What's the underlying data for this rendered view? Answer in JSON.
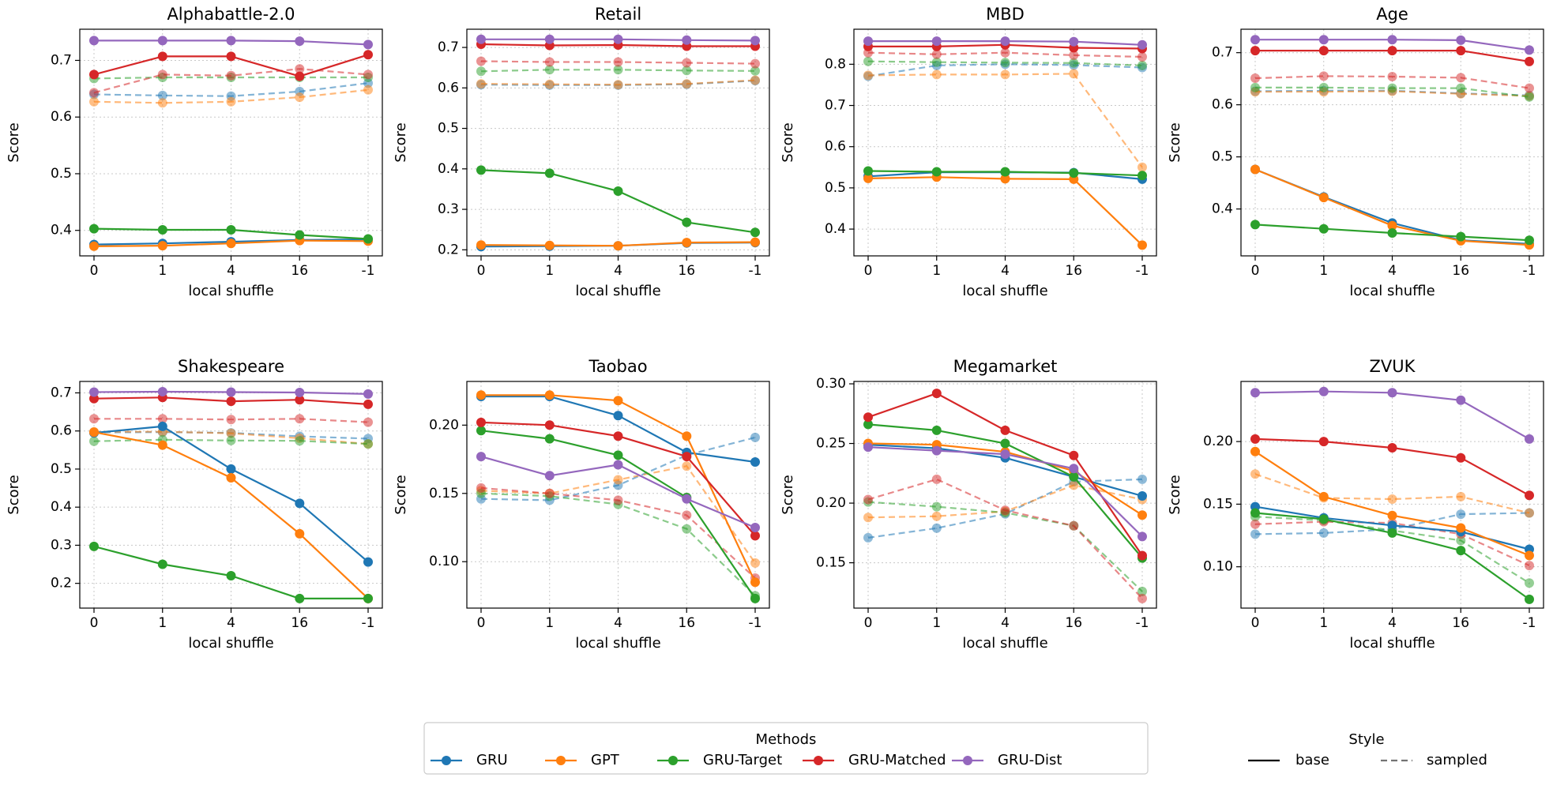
{
  "colors": {
    "GRU": "#1f77b4",
    "GPT": "#ff7f0e",
    "GRU-Target": "#2ca02c",
    "GRU-Matched": "#d62728",
    "GRU-Dist": "#9467bd"
  },
  "legend": {
    "methods_title": "Methods",
    "methods": [
      "GRU",
      "GPT",
      "GRU-Target",
      "GRU-Matched",
      "GRU-Dist"
    ],
    "style_title": "Style",
    "styles": [
      "base",
      "sampled"
    ]
  },
  "chart_data": [
    {
      "type": "line",
      "title": "Alphabattle-2.0",
      "xlabel": "local shuffle",
      "ylabel": "Score",
      "categories": [
        "0",
        "1",
        "4",
        "16",
        "-1"
      ],
      "ylim": [
        0.355,
        0.755
      ],
      "yticks": [
        0.4,
        0.5,
        0.6,
        0.7
      ],
      "yticklabels": [
        "0.4",
        "0.5",
        "0.6",
        "0.7"
      ],
      "series": [
        {
          "name": "GRU",
          "style": "base",
          "values": [
            0.375,
            0.377,
            0.38,
            0.383,
            0.384
          ]
        },
        {
          "name": "GPT",
          "style": "base",
          "values": [
            0.372,
            0.373,
            0.377,
            0.382,
            0.381
          ]
        },
        {
          "name": "GRU-Target",
          "style": "base",
          "values": [
            0.403,
            0.401,
            0.401,
            0.392,
            0.385
          ]
        },
        {
          "name": "GRU-Matched",
          "style": "base",
          "values": [
            0.675,
            0.707,
            0.707,
            0.672,
            0.71
          ]
        },
        {
          "name": "GRU-Dist",
          "style": "base",
          "values": [
            0.735,
            0.735,
            0.735,
            0.734,
            0.728
          ]
        },
        {
          "name": "GRU",
          "style": "sampled",
          "values": [
            0.64,
            0.638,
            0.637,
            0.645,
            0.66
          ]
        },
        {
          "name": "GPT",
          "style": "sampled",
          "values": [
            0.627,
            0.625,
            0.627,
            0.635,
            0.648
          ]
        },
        {
          "name": "GRU-Target",
          "style": "sampled",
          "values": [
            0.668,
            0.67,
            0.67,
            0.67,
            0.67
          ]
        },
        {
          "name": "GRU-Matched",
          "style": "sampled",
          "values": [
            0.643,
            0.675,
            0.673,
            0.685,
            0.675
          ]
        }
      ]
    },
    {
      "type": "line",
      "title": "Retail",
      "xlabel": "local shuffle",
      "ylabel": "Score",
      "categories": [
        "0",
        "1",
        "4",
        "16",
        "-1"
      ],
      "ylim": [
        0.185,
        0.745
      ],
      "yticks": [
        0.2,
        0.3,
        0.4,
        0.5,
        0.6,
        0.7
      ],
      "yticklabels": [
        "0.2",
        "0.3",
        "0.4",
        "0.5",
        "0.6",
        "0.7"
      ],
      "series": [
        {
          "name": "GRU",
          "style": "base",
          "values": [
            0.208,
            0.209,
            0.21,
            0.217,
            0.218
          ]
        },
        {
          "name": "GPT",
          "style": "base",
          "values": [
            0.212,
            0.211,
            0.21,
            0.218,
            0.219
          ]
        },
        {
          "name": "GRU-Target",
          "style": "base",
          "values": [
            0.397,
            0.389,
            0.345,
            0.268,
            0.243
          ]
        },
        {
          "name": "GRU-Matched",
          "style": "base",
          "values": [
            0.708,
            0.705,
            0.706,
            0.703,
            0.703
          ]
        },
        {
          "name": "GRU-Dist",
          "style": "base",
          "values": [
            0.72,
            0.72,
            0.72,
            0.718,
            0.717
          ]
        },
        {
          "name": "GRU",
          "style": "sampled",
          "values": [
            0.608,
            0.607,
            0.607,
            0.609,
            0.618
          ]
        },
        {
          "name": "GPT",
          "style": "sampled",
          "values": [
            0.61,
            0.609,
            0.608,
            0.61,
            0.619
          ]
        },
        {
          "name": "GRU-Target",
          "style": "sampled",
          "values": [
            0.641,
            0.645,
            0.645,
            0.643,
            0.642
          ]
        },
        {
          "name": "GRU-Matched",
          "style": "sampled",
          "values": [
            0.666,
            0.664,
            0.664,
            0.662,
            0.66
          ]
        }
      ]
    },
    {
      "type": "line",
      "title": "MBD",
      "xlabel": "local shuffle",
      "ylabel": "Score",
      "categories": [
        "0",
        "1",
        "4",
        "16",
        "-1"
      ],
      "ylim": [
        0.335,
        0.885
      ],
      "yticks": [
        0.4,
        0.5,
        0.6,
        0.7,
        0.8
      ],
      "yticklabels": [
        "0.4",
        "0.5",
        "0.6",
        "0.7",
        "0.8"
      ],
      "series": [
        {
          "name": "GRU",
          "style": "base",
          "values": [
            0.528,
            0.538,
            0.538,
            0.537,
            0.521
          ]
        },
        {
          "name": "GPT",
          "style": "base",
          "values": [
            0.523,
            0.526,
            0.522,
            0.521,
            0.361
          ]
        },
        {
          "name": "GRU-Target",
          "style": "base",
          "values": [
            0.541,
            0.539,
            0.539,
            0.536,
            0.53
          ]
        },
        {
          "name": "GRU-Matched",
          "style": "base",
          "values": [
            0.843,
            0.843,
            0.847,
            0.84,
            0.838
          ]
        },
        {
          "name": "GRU-Dist",
          "style": "base",
          "values": [
            0.856,
            0.856,
            0.856,
            0.855,
            0.847
          ]
        },
        {
          "name": "GRU",
          "style": "sampled",
          "values": [
            0.771,
            0.797,
            0.8,
            0.798,
            0.792
          ]
        },
        {
          "name": "GPT",
          "style": "sampled",
          "values": [
            0.773,
            0.775,
            0.775,
            0.777,
            0.55
          ]
        },
        {
          "name": "GRU-Target",
          "style": "sampled",
          "values": [
            0.807,
            0.805,
            0.804,
            0.803,
            0.797
          ]
        },
        {
          "name": "GRU-Matched",
          "style": "sampled",
          "values": [
            0.828,
            0.824,
            0.828,
            0.822,
            0.818
          ]
        }
      ]
    },
    {
      "type": "line",
      "title": "Age",
      "xlabel": "local shuffle",
      "ylabel": "Score",
      "categories": [
        "0",
        "1",
        "4",
        "16",
        "-1"
      ],
      "ylim": [
        0.31,
        0.745
      ],
      "yticks": [
        0.4,
        0.5,
        0.6,
        0.7
      ],
      "yticklabels": [
        "0.4",
        "0.5",
        "0.6",
        "0.7"
      ],
      "series": [
        {
          "name": "GRU",
          "style": "base",
          "values": [
            0.476,
            0.423,
            0.373,
            0.34,
            0.333
          ]
        },
        {
          "name": "GPT",
          "style": "base",
          "values": [
            0.476,
            0.422,
            0.368,
            0.339,
            0.331
          ]
        },
        {
          "name": "GRU-Target",
          "style": "base",
          "values": [
            0.37,
            0.362,
            0.354,
            0.347,
            0.34
          ]
        },
        {
          "name": "GRU-Matched",
          "style": "base",
          "values": [
            0.704,
            0.704,
            0.704,
            0.704,
            0.683
          ]
        },
        {
          "name": "GRU-Dist",
          "style": "base",
          "values": [
            0.725,
            0.725,
            0.725,
            0.724,
            0.705
          ]
        },
        {
          "name": "GRU",
          "style": "sampled",
          "values": [
            0.626,
            0.627,
            0.627,
            0.622,
            0.618
          ]
        },
        {
          "name": "GPT",
          "style": "sampled",
          "values": [
            0.625,
            0.625,
            0.626,
            0.621,
            0.617
          ]
        },
        {
          "name": "GRU-Target",
          "style": "sampled",
          "values": [
            0.633,
            0.633,
            0.632,
            0.632,
            0.615
          ]
        },
        {
          "name": "GRU-Matched",
          "style": "sampled",
          "values": [
            0.651,
            0.655,
            0.654,
            0.652,
            0.632
          ]
        }
      ]
    },
    {
      "type": "line",
      "title": "Shakespeare",
      "xlabel": "local shuffle",
      "ylabel": "Score",
      "categories": [
        "0",
        "1",
        "4",
        "16",
        "-1"
      ],
      "ylim": [
        0.135,
        0.73
      ],
      "yticks": [
        0.2,
        0.3,
        0.4,
        0.5,
        0.6,
        0.7
      ],
      "yticklabels": [
        "0.2",
        "0.3",
        "0.4",
        "0.5",
        "0.6",
        "0.7"
      ],
      "series": [
        {
          "name": "GRU",
          "style": "base",
          "values": [
            0.595,
            0.612,
            0.5,
            0.41,
            0.256
          ]
        },
        {
          "name": "GPT",
          "style": "base",
          "values": [
            0.597,
            0.563,
            0.477,
            0.33,
            0.16
          ]
        },
        {
          "name": "GRU-Target",
          "style": "base",
          "values": [
            0.297,
            0.25,
            0.22,
            0.16,
            0.16
          ]
        },
        {
          "name": "GRU-Matched",
          "style": "base",
          "values": [
            0.685,
            0.688,
            0.678,
            0.682,
            0.67
          ]
        },
        {
          "name": "GRU-Dist",
          "style": "base",
          "values": [
            0.702,
            0.703,
            0.702,
            0.701,
            0.697
          ]
        },
        {
          "name": "GRU",
          "style": "sampled",
          "values": [
            0.596,
            0.597,
            0.595,
            0.586,
            0.58
          ]
        },
        {
          "name": "GPT",
          "style": "sampled",
          "values": [
            0.598,
            0.598,
            0.594,
            0.581,
            0.566
          ]
        },
        {
          "name": "GRU-Target",
          "style": "sampled",
          "values": [
            0.573,
            0.577,
            0.575,
            0.574,
            0.566
          ]
        },
        {
          "name": "GRU-Matched",
          "style": "sampled",
          "values": [
            0.632,
            0.632,
            0.63,
            0.632,
            0.623
          ]
        }
      ]
    },
    {
      "type": "line",
      "title": "Taobao",
      "xlabel": "local shuffle",
      "ylabel": "Score",
      "categories": [
        "0",
        "1",
        "4",
        "16",
        "-1"
      ],
      "ylim": [
        0.066,
        0.232
      ],
      "yticks": [
        0.1,
        0.15,
        0.2
      ],
      "yticklabels": [
        "0.10",
        "0.15",
        "0.20"
      ],
      "series": [
        {
          "name": "GRU",
          "style": "base",
          "values": [
            0.221,
            0.221,
            0.207,
            0.18,
            0.173
          ]
        },
        {
          "name": "GPT",
          "style": "base",
          "values": [
            0.222,
            0.222,
            0.218,
            0.192,
            0.085
          ]
        },
        {
          "name": "GRU-Target",
          "style": "base",
          "values": [
            0.196,
            0.19,
            0.178,
            0.147,
            0.073
          ]
        },
        {
          "name": "GRU-Matched",
          "style": "base",
          "values": [
            0.202,
            0.2,
            0.192,
            0.177,
            0.119
          ]
        },
        {
          "name": "GRU-Dist",
          "style": "base",
          "values": [
            0.177,
            0.163,
            0.171,
            0.146,
            0.125
          ]
        },
        {
          "name": "GRU",
          "style": "sampled",
          "values": [
            0.146,
            0.145,
            0.156,
            0.178,
            0.191
          ]
        },
        {
          "name": "GPT",
          "style": "sampled",
          "values": [
            0.152,
            0.15,
            0.16,
            0.17,
            0.099
          ]
        },
        {
          "name": "GRU-Target",
          "style": "sampled",
          "values": [
            0.15,
            0.148,
            0.142,
            0.124,
            0.075
          ]
        },
        {
          "name": "GRU-Matched",
          "style": "sampled",
          "values": [
            0.154,
            0.15,
            0.145,
            0.134,
            0.088
          ]
        }
      ]
    },
    {
      "type": "line",
      "title": "Megamarket",
      "xlabel": "local shuffle",
      "ylabel": "Score",
      "categories": [
        "0",
        "1",
        "4",
        "16",
        "-1"
      ],
      "ylim": [
        0.112,
        0.302
      ],
      "yticks": [
        0.15,
        0.2,
        0.25,
        0.3
      ],
      "yticklabels": [
        "0.15",
        "0.20",
        "0.25",
        "0.30"
      ],
      "series": [
        {
          "name": "GRU",
          "style": "base",
          "values": [
            0.249,
            0.246,
            0.238,
            0.222,
            0.206
          ]
        },
        {
          "name": "GPT",
          "style": "base",
          "values": [
            0.25,
            0.249,
            0.243,
            0.227,
            0.19
          ]
        },
        {
          "name": "GRU-Target",
          "style": "base",
          "values": [
            0.266,
            0.261,
            0.25,
            0.222,
            0.154
          ]
        },
        {
          "name": "GRU-Matched",
          "style": "base",
          "values": [
            0.272,
            0.292,
            0.261,
            0.24,
            0.156
          ]
        },
        {
          "name": "GRU-Dist",
          "style": "base",
          "values": [
            0.247,
            0.244,
            0.241,
            0.229,
            0.172
          ]
        },
        {
          "name": "GRU",
          "style": "sampled",
          "values": [
            0.171,
            0.179,
            0.191,
            0.218,
            0.22
          ]
        },
        {
          "name": "GPT",
          "style": "sampled",
          "values": [
            0.188,
            0.189,
            0.193,
            0.215,
            0.203
          ]
        },
        {
          "name": "GRU-Target",
          "style": "sampled",
          "values": [
            0.201,
            0.197,
            0.192,
            0.181,
            0.126
          ]
        },
        {
          "name": "GRU-Matched",
          "style": "sampled",
          "values": [
            0.203,
            0.22,
            0.194,
            0.181,
            0.12
          ]
        }
      ]
    },
    {
      "type": "line",
      "title": "ZVUK",
      "xlabel": "local shuffle",
      "ylabel": "Score",
      "categories": [
        "0",
        "1",
        "4",
        "16",
        "-1"
      ],
      "ylim": [
        0.067,
        0.248
      ],
      "yticks": [
        0.1,
        0.15,
        0.2
      ],
      "yticklabels": [
        "0.10",
        "0.15",
        "0.20"
      ],
      "series": [
        {
          "name": "GRU",
          "style": "base",
          "values": [
            0.148,
            0.139,
            0.133,
            0.128,
            0.114
          ]
        },
        {
          "name": "GPT",
          "style": "base",
          "values": [
            0.192,
            0.156,
            0.141,
            0.131,
            0.109
          ]
        },
        {
          "name": "GRU-Target",
          "style": "base",
          "values": [
            0.143,
            0.138,
            0.127,
            0.113,
            0.074
          ]
        },
        {
          "name": "GRU-Matched",
          "style": "base",
          "values": [
            0.202,
            0.2,
            0.195,
            0.187,
            0.157
          ]
        },
        {
          "name": "GRU-Dist",
          "style": "base",
          "values": [
            0.239,
            0.24,
            0.239,
            0.233,
            0.202
          ]
        },
        {
          "name": "GRU",
          "style": "sampled",
          "values": [
            0.126,
            0.127,
            0.13,
            0.142,
            0.143
          ]
        },
        {
          "name": "GPT",
          "style": "sampled",
          "values": [
            0.174,
            0.155,
            0.154,
            0.156,
            0.143
          ]
        },
        {
          "name": "GRU-Target",
          "style": "sampled",
          "values": [
            0.14,
            0.137,
            0.129,
            0.121,
            0.087
          ]
        },
        {
          "name": "GRU-Matched",
          "style": "sampled",
          "values": [
            0.134,
            0.136,
            0.135,
            0.126,
            0.101
          ]
        }
      ]
    }
  ]
}
